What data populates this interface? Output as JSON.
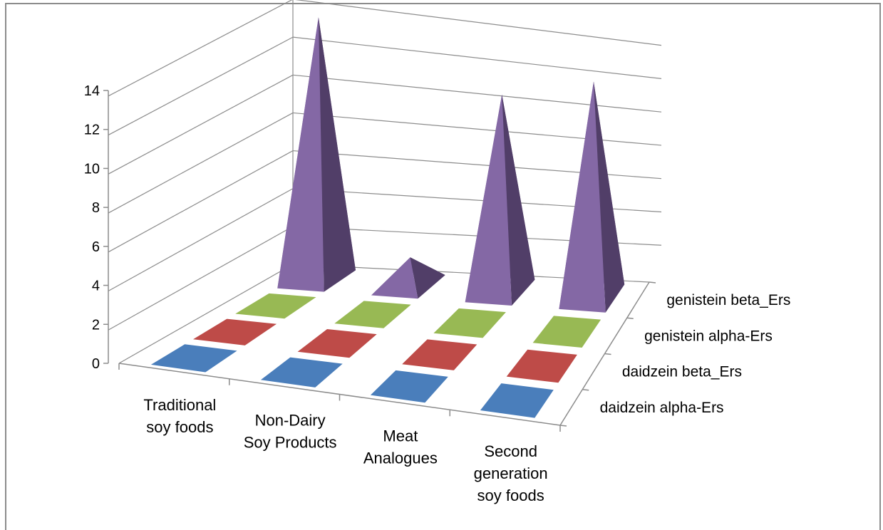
{
  "chart_data": {
    "type": "3d-column-pyramid",
    "title": "",
    "categories": [
      [
        "Traditional",
        "soy foods"
      ],
      [
        "Non-Dairy",
        "Soy Products"
      ],
      [
        "Meat",
        "Analogues"
      ],
      [
        "Second",
        "generation",
        "soy foods"
      ]
    ],
    "series": [
      {
        "name": "daidzein alpha-Ers",
        "values": [
          0,
          0,
          0,
          0
        ]
      },
      {
        "name": "daidzein beta_Ers",
        "values": [
          0,
          0,
          0,
          0
        ]
      },
      {
        "name": "genistein alpha-Ers",
        "values": [
          0,
          0,
          0,
          0
        ]
      },
      {
        "name": "genistein beta_Ers",
        "values": [
          14,
          1.5,
          10.5,
          11.5
        ]
      }
    ],
    "zlim": [
      0,
      14
    ],
    "z_ticks": [
      0,
      2,
      4,
      6,
      8,
      10,
      12,
      14
    ],
    "gridlines": true
  },
  "colors": {
    "daidzein alpha-Ers": "#4a7ebb",
    "daidzein beta_Ers": "#be4b48",
    "genistein alpha-Ers": "#98b954",
    "genistein beta_Ers": "#7d60a0",
    "grid": "#8c8c8c",
    "frame": "#8c8c8c"
  }
}
